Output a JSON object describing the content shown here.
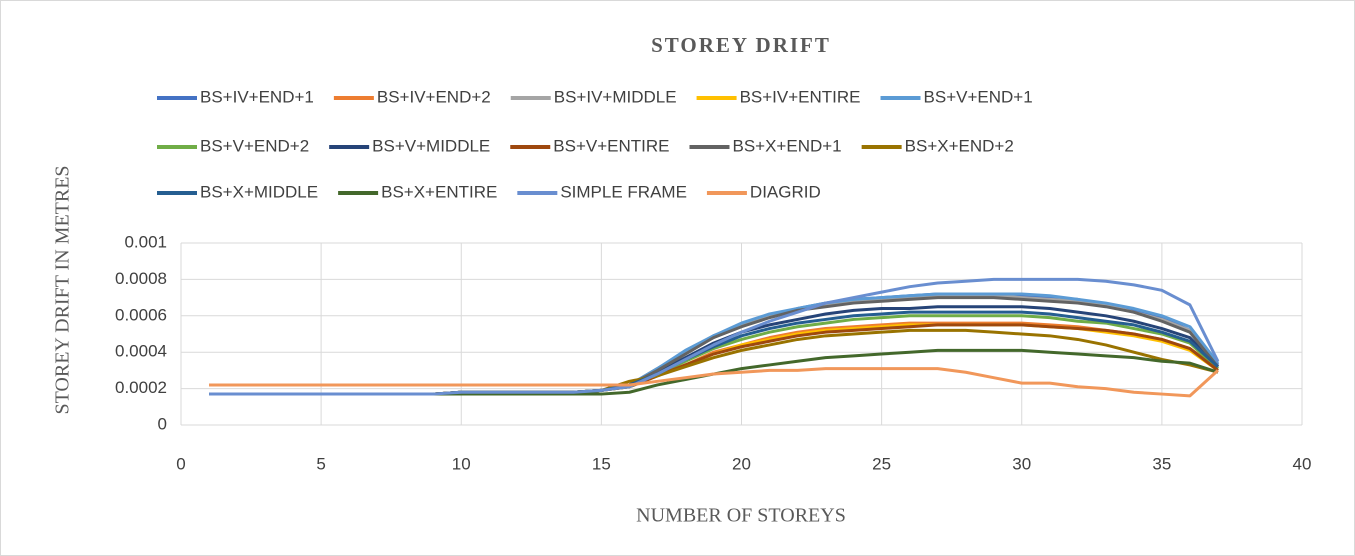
{
  "chart_data": {
    "type": "line",
    "title": "STOREY DRIFT",
    "x_label": "NUMBER OF STOREYS",
    "y_label": "STOREY DRIFT IN METRES",
    "x": [
      1,
      2,
      3,
      4,
      5,
      6,
      7,
      8,
      9,
      10,
      11,
      12,
      13,
      14,
      15,
      16,
      17,
      18,
      19,
      20,
      21,
      22,
      23,
      24,
      25,
      26,
      27,
      28,
      29,
      30,
      31,
      32,
      33,
      34,
      35,
      36,
      37
    ],
    "xlim": [
      0,
      40
    ],
    "xticks": [
      0,
      5,
      10,
      15,
      20,
      25,
      30,
      35,
      40
    ],
    "ylim": [
      0,
      0.001
    ],
    "yticks": [
      0,
      0.0002,
      0.0004,
      0.0006,
      0.0008,
      0.001
    ],
    "grid": true,
    "legend": "top",
    "series": [
      {
        "name": "BS+IV+END+1",
        "color": "#4472c4",
        "values": [
          0.00017,
          0.00017,
          0.00017,
          0.00017,
          0.00017,
          0.00017,
          0.00017,
          0.00017,
          0.00017,
          0.00018,
          0.00018,
          0.00018,
          0.00018,
          0.00018,
          0.00019,
          0.00022,
          0.00031,
          0.0004,
          0.00049,
          0.00055,
          0.0006,
          0.00064,
          0.00067,
          0.00069,
          0.0007,
          0.00071,
          0.00072,
          0.00072,
          0.00072,
          0.00071,
          0.0007,
          0.00069,
          0.00066,
          0.00063,
          0.00059,
          0.00052,
          0.00033
        ]
      },
      {
        "name": "BS+IV+END+2",
        "color": "#ed7d31",
        "values": [
          0.00017,
          0.00017,
          0.00017,
          0.00017,
          0.00017,
          0.00017,
          0.00017,
          0.00017,
          0.00017,
          0.00018,
          0.00018,
          0.00018,
          0.00018,
          0.00018,
          0.00019,
          0.00021,
          0.00027,
          0.00033,
          0.0004,
          0.00044,
          0.00048,
          0.00051,
          0.00053,
          0.00054,
          0.00055,
          0.00056,
          0.00056,
          0.00056,
          0.00056,
          0.00056,
          0.00055,
          0.00054,
          0.00052,
          0.0005,
          0.00047,
          0.00042,
          0.00031
        ]
      },
      {
        "name": "BS+IV+MIDDLE",
        "color": "#a5a5a5",
        "values": [
          0.00017,
          0.00017,
          0.00017,
          0.00017,
          0.00017,
          0.00017,
          0.00017,
          0.00017,
          0.00017,
          0.00018,
          0.00018,
          0.00018,
          0.00018,
          0.00018,
          0.00019,
          0.00022,
          0.00031,
          0.0004,
          0.00048,
          0.00055,
          0.0006,
          0.00063,
          0.00066,
          0.00068,
          0.00069,
          0.0007,
          0.00071,
          0.00071,
          0.00071,
          0.0007,
          0.00069,
          0.00068,
          0.00066,
          0.00062,
          0.00058,
          0.00052,
          0.00032
        ]
      },
      {
        "name": "BS+IV+ENTIRE",
        "color": "#ffc000",
        "values": [
          0.00017,
          0.00017,
          0.00017,
          0.00017,
          0.00017,
          0.00017,
          0.00017,
          0.00017,
          0.00017,
          0.00018,
          0.00018,
          0.00018,
          0.00018,
          0.00018,
          0.00019,
          0.00021,
          0.00027,
          0.00033,
          0.00039,
          0.00044,
          0.00047,
          0.0005,
          0.00052,
          0.00053,
          0.00054,
          0.00055,
          0.00055,
          0.00055,
          0.00055,
          0.00055,
          0.00054,
          0.00053,
          0.00051,
          0.00049,
          0.00046,
          0.00041,
          0.0003
        ]
      },
      {
        "name": "BS+V+END+1",
        "color": "#5b9bd5",
        "values": [
          0.00017,
          0.00017,
          0.00017,
          0.00017,
          0.00017,
          0.00017,
          0.00017,
          0.00017,
          0.00017,
          0.00018,
          0.00018,
          0.00018,
          0.00018,
          0.00018,
          0.00019,
          0.00022,
          0.00031,
          0.00041,
          0.00049,
          0.00056,
          0.00061,
          0.00064,
          0.00067,
          0.00069,
          0.0007,
          0.00071,
          0.00072,
          0.00072,
          0.00072,
          0.00072,
          0.00071,
          0.00069,
          0.00067,
          0.00064,
          0.0006,
          0.00054,
          0.00034
        ]
      },
      {
        "name": "BS+V+END+2",
        "color": "#70ad47",
        "values": [
          0.00017,
          0.00017,
          0.00017,
          0.00017,
          0.00017,
          0.00017,
          0.00017,
          0.00017,
          0.00017,
          0.00018,
          0.00018,
          0.00018,
          0.00018,
          0.00018,
          0.00019,
          0.00021,
          0.00028,
          0.00035,
          0.00042,
          0.00047,
          0.00051,
          0.00054,
          0.00056,
          0.00058,
          0.00059,
          0.0006,
          0.0006,
          0.0006,
          0.0006,
          0.0006,
          0.00059,
          0.00057,
          0.00056,
          0.00053,
          0.0005,
          0.00045,
          0.00031
        ]
      },
      {
        "name": "BS+V+MIDDLE",
        "color": "#264478",
        "values": [
          0.00017,
          0.00017,
          0.00017,
          0.00017,
          0.00017,
          0.00017,
          0.00017,
          0.00017,
          0.00017,
          0.00018,
          0.00018,
          0.00018,
          0.00018,
          0.00018,
          0.00019,
          0.00022,
          0.00029,
          0.00037,
          0.00045,
          0.00051,
          0.00055,
          0.00058,
          0.00061,
          0.00063,
          0.00064,
          0.00064,
          0.00065,
          0.00065,
          0.00065,
          0.00065,
          0.00064,
          0.00062,
          0.0006,
          0.00057,
          0.00053,
          0.00048,
          0.00032
        ]
      },
      {
        "name": "BS+V+ENTIRE",
        "color": "#9e480e",
        "values": [
          0.00017,
          0.00017,
          0.00017,
          0.00017,
          0.00017,
          0.00017,
          0.00017,
          0.00017,
          0.00017,
          0.00018,
          0.00018,
          0.00018,
          0.00018,
          0.00018,
          0.00019,
          0.00021,
          0.00027,
          0.00033,
          0.00039,
          0.00043,
          0.00046,
          0.00049,
          0.00051,
          0.00052,
          0.00053,
          0.00054,
          0.00055,
          0.00055,
          0.00055,
          0.00055,
          0.00054,
          0.00053,
          0.00052,
          0.0005,
          0.00047,
          0.00042,
          0.0003
        ]
      },
      {
        "name": "BS+X+END+1",
        "color": "#636363",
        "values": [
          0.00017,
          0.00017,
          0.00017,
          0.00017,
          0.00017,
          0.00017,
          0.00017,
          0.00017,
          0.00017,
          0.00018,
          0.00018,
          0.00018,
          0.00018,
          0.00018,
          0.00019,
          0.00022,
          0.0003,
          0.00039,
          0.00048,
          0.00054,
          0.00059,
          0.00063,
          0.00065,
          0.00067,
          0.00068,
          0.00069,
          0.0007,
          0.0007,
          0.0007,
          0.00069,
          0.00068,
          0.00067,
          0.00065,
          0.00062,
          0.00057,
          0.00051,
          0.00032
        ]
      },
      {
        "name": "BS+X+END+2",
        "color": "#997300",
        "values": [
          0.00017,
          0.00017,
          0.00017,
          0.00017,
          0.00017,
          0.00017,
          0.00017,
          0.00017,
          0.00017,
          0.00018,
          0.00018,
          0.00018,
          0.00018,
          0.00018,
          0.00019,
          0.00024,
          0.00027,
          0.00032,
          0.00037,
          0.00041,
          0.00044,
          0.00047,
          0.00049,
          0.0005,
          0.00051,
          0.00052,
          0.00052,
          0.00052,
          0.00051,
          0.0005,
          0.00049,
          0.00047,
          0.00044,
          0.0004,
          0.00036,
          0.00033,
          0.00029
        ]
      },
      {
        "name": "BS+X+MIDDLE",
        "color": "#255e91",
        "values": [
          0.00017,
          0.00017,
          0.00017,
          0.00017,
          0.00017,
          0.00017,
          0.00017,
          0.00017,
          0.00017,
          0.00018,
          0.00018,
          0.00018,
          0.00018,
          0.00018,
          0.00019,
          0.00022,
          0.00028,
          0.00036,
          0.00043,
          0.00049,
          0.00053,
          0.00056,
          0.00058,
          0.0006,
          0.00061,
          0.00062,
          0.00062,
          0.00062,
          0.00062,
          0.00062,
          0.00061,
          0.00059,
          0.00057,
          0.00055,
          0.00051,
          0.00046,
          0.00032
        ]
      },
      {
        "name": "BS+X+ENTIRE",
        "color": "#43682b",
        "values": [
          0.00017,
          0.00017,
          0.00017,
          0.00017,
          0.00017,
          0.00017,
          0.00017,
          0.00017,
          0.00017,
          0.00017,
          0.00017,
          0.00017,
          0.00017,
          0.00017,
          0.00017,
          0.00018,
          0.00022,
          0.00025,
          0.00028,
          0.00031,
          0.00033,
          0.00035,
          0.00037,
          0.00038,
          0.00039,
          0.0004,
          0.00041,
          0.00041,
          0.00041,
          0.00041,
          0.0004,
          0.00039,
          0.00038,
          0.00037,
          0.00035,
          0.00034,
          0.00029
        ]
      },
      {
        "name": "SIMPLE FRAME",
        "color": "#698ed0",
        "values": [
          0.00017,
          0.00017,
          0.00017,
          0.00017,
          0.00017,
          0.00017,
          0.00017,
          0.00017,
          0.00017,
          0.00018,
          0.00018,
          0.00018,
          0.00018,
          0.00018,
          0.00019,
          0.00021,
          0.00028,
          0.00036,
          0.00044,
          0.00051,
          0.00057,
          0.00062,
          0.00067,
          0.0007,
          0.00073,
          0.00076,
          0.00078,
          0.00079,
          0.0008,
          0.0008,
          0.0008,
          0.0008,
          0.00079,
          0.00077,
          0.00074,
          0.00066,
          0.00035
        ]
      },
      {
        "name": "DIAGRID",
        "color": "#f1975a",
        "values": [
          0.00022,
          0.00022,
          0.00022,
          0.00022,
          0.00022,
          0.00022,
          0.00022,
          0.00022,
          0.00022,
          0.00022,
          0.00022,
          0.00022,
          0.00022,
          0.00022,
          0.00022,
          0.00022,
          0.00024,
          0.00026,
          0.00028,
          0.00029,
          0.0003,
          0.0003,
          0.00031,
          0.00031,
          0.00031,
          0.00031,
          0.00031,
          0.00029,
          0.00026,
          0.00023,
          0.00023,
          0.00021,
          0.0002,
          0.00018,
          0.00017,
          0.00016,
          0.0003
        ]
      }
    ]
  }
}
